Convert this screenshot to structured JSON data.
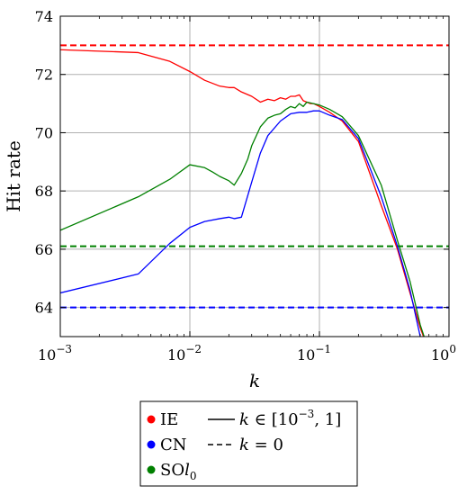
{
  "chart_data": {
    "type": "line",
    "xlabel": "k",
    "ylabel": "Hit rate",
    "xscale": "log",
    "xlim": [
      0.001,
      1
    ],
    "ylim": [
      63,
      74
    ],
    "grid": true,
    "legend_position": "below",
    "x_ticks": [
      {
        "value": 0.001,
        "mantissa": "10",
        "exp": "−3"
      },
      {
        "value": 0.01,
        "mantissa": "10",
        "exp": "−2"
      },
      {
        "value": 0.1,
        "mantissa": "10",
        "exp": "−1"
      },
      {
        "value": 1,
        "mantissa": "10",
        "exp": "0"
      }
    ],
    "y_ticks": [
      64,
      66,
      68,
      70,
      72,
      74
    ],
    "series": [
      {
        "name": "IE",
        "color": "#ff0000",
        "baseline": 73.0,
        "x": [
          0.001,
          0.004,
          0.007,
          0.01,
          0.013,
          0.017,
          0.02,
          0.022,
          0.025,
          0.03,
          0.035,
          0.04,
          0.045,
          0.05,
          0.055,
          0.06,
          0.065,
          0.07,
          0.075,
          0.08,
          0.085,
          0.09,
          0.1,
          0.12,
          0.15,
          0.2,
          0.3,
          0.4,
          0.5,
          0.6,
          0.7
        ],
        "y": [
          72.85,
          72.75,
          72.45,
          72.1,
          71.8,
          71.6,
          71.55,
          71.55,
          71.4,
          71.25,
          71.05,
          71.15,
          71.1,
          71.2,
          71.15,
          71.25,
          71.25,
          71.3,
          71.1,
          71.05,
          71.0,
          71.0,
          70.9,
          70.7,
          70.4,
          69.7,
          67.5,
          66.0,
          64.5,
          63.3,
          62.5
        ]
      },
      {
        "name": "CN",
        "color": "#0000ff",
        "baseline": 64.0,
        "x": [
          0.001,
          0.004,
          0.007,
          0.01,
          0.013,
          0.017,
          0.02,
          0.022,
          0.025,
          0.03,
          0.035,
          0.04,
          0.05,
          0.06,
          0.07,
          0.08,
          0.09,
          0.1,
          0.12,
          0.15,
          0.2,
          0.3,
          0.4,
          0.5,
          0.6,
          0.7
        ],
        "y": [
          64.5,
          65.15,
          66.2,
          66.75,
          66.95,
          67.05,
          67.1,
          67.05,
          67.1,
          68.3,
          69.3,
          69.9,
          70.4,
          70.65,
          70.7,
          70.7,
          70.75,
          70.75,
          70.6,
          70.45,
          69.8,
          67.8,
          66.1,
          64.6,
          63.0,
          62.5
        ]
      },
      {
        "name": "SOl0",
        "color": "#008000",
        "baseline": 66.1,
        "x": [
          0.001,
          0.004,
          0.007,
          0.01,
          0.013,
          0.015,
          0.017,
          0.02,
          0.022,
          0.025,
          0.028,
          0.03,
          0.035,
          0.04,
          0.045,
          0.05,
          0.055,
          0.06,
          0.065,
          0.07,
          0.075,
          0.08,
          0.09,
          0.1,
          0.12,
          0.15,
          0.2,
          0.3,
          0.4,
          0.5,
          0.6,
          0.7
        ],
        "y": [
          66.65,
          67.8,
          68.4,
          68.9,
          68.8,
          68.65,
          68.5,
          68.35,
          68.2,
          68.6,
          69.1,
          69.55,
          70.2,
          70.5,
          70.6,
          70.65,
          70.8,
          70.9,
          70.85,
          71.0,
          70.9,
          71.05,
          71.0,
          70.95,
          70.8,
          70.55,
          69.9,
          68.2,
          66.3,
          64.9,
          63.4,
          62.5
        ]
      }
    ]
  },
  "legend": {
    "items": [
      {
        "label": "IE",
        "color": "#ff0000"
      },
      {
        "label": "CN",
        "color": "#0000ff"
      },
      {
        "label": "SO",
        "sub": "0",
        "italic": "l",
        "color": "#008000"
      }
    ],
    "solid_label_prefix": "k ∈ [10",
    "solid_label_exp": "−3",
    "solid_label_suffix": ", 1]",
    "dashed_label": "k = 0"
  }
}
